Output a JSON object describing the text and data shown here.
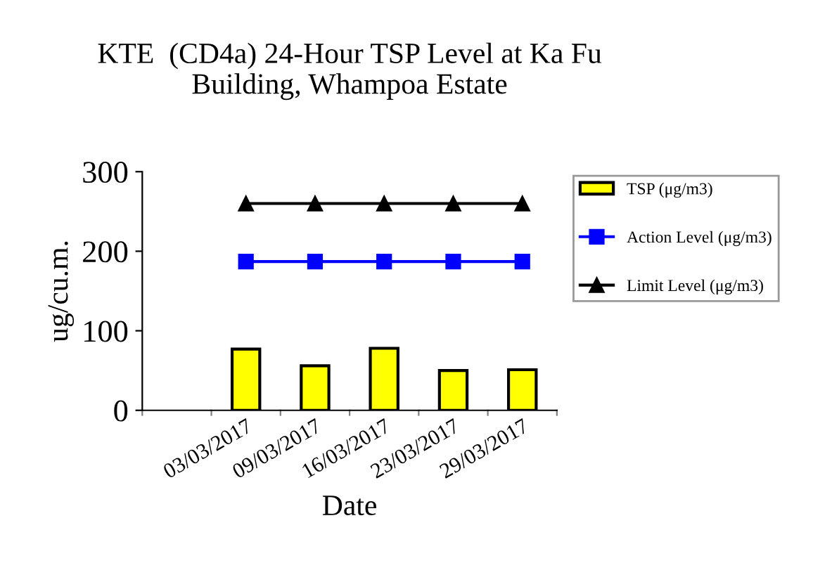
{
  "chart_data": {
    "type": "bar",
    "title": "KTE  (CD4a) 24-Hour TSP Level at Ka Fu\nBuilding, Whampoa Estate",
    "xlabel": "Date",
    "ylabel": "ug/cu.m.",
    "categories": [
      null,
      "03/03/2017",
      "09/03/2017",
      "16/03/2017",
      "23/03/2017",
      "29/03/2017"
    ],
    "series": [
      {
        "name": "TSP (μg/m3)",
        "color": "#ffff00",
        "values": [
          null,
          77,
          56,
          78,
          50,
          51
        ]
      },
      {
        "name": "Action Level (μg/m3)",
        "type": "line",
        "color": "#0000ff",
        "marker": "square",
        "values": [
          null,
          187,
          187,
          187,
          187,
          187
        ]
      },
      {
        "name": "Limit Level (μg/m3)",
        "type": "line",
        "color": "#000000",
        "marker": "triangle",
        "values": [
          null,
          260,
          260,
          260,
          260,
          260
        ]
      }
    ],
    "ylim": [
      0,
      300
    ],
    "yticks": [
      0,
      100,
      200,
      300
    ],
    "grid": false,
    "legend": "right"
  }
}
